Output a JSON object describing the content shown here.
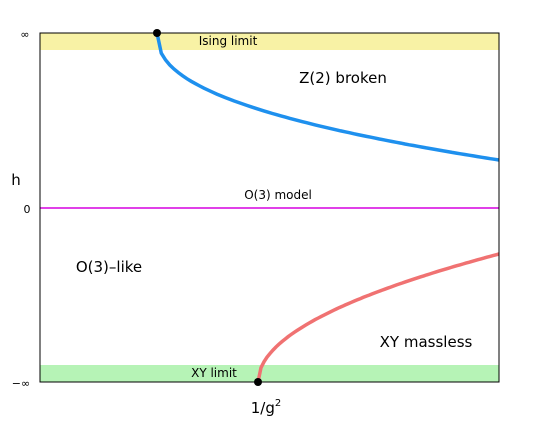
{
  "diagram": {
    "y_axis": {
      "label": "h",
      "ticks": {
        "top": "∞",
        "middle": "0",
        "bottom": "−∞"
      }
    },
    "x_axis": {
      "label_main": "1/g",
      "label_sup": "2"
    },
    "bands": {
      "top": {
        "label": "Ising limit",
        "color": "#f8f2a5"
      },
      "bottom": {
        "label": "XY limit",
        "color": "#b6f3b6"
      }
    },
    "o3_line": {
      "label": "O(3) model",
      "color": "#e040e8"
    },
    "regions": {
      "upper_right": "Z(2) broken",
      "middle_left": "O(3)–like",
      "lower_right": "XY massless"
    },
    "curves": {
      "upper_color": "#1e90ee",
      "lower_color": "#f07272",
      "endpoint_color": "#000000"
    }
  }
}
